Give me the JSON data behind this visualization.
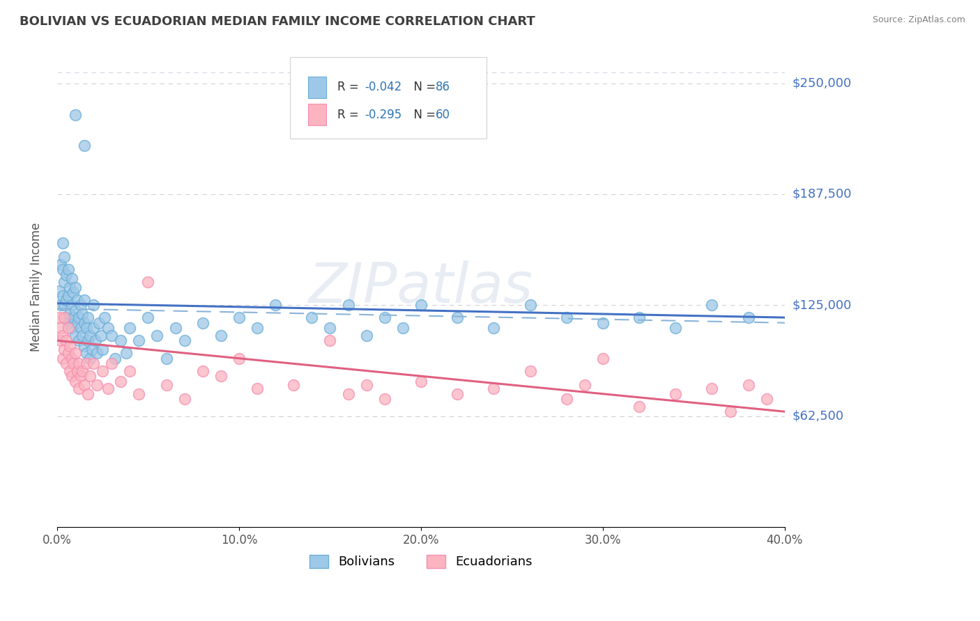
{
  "title": "BOLIVIAN VS ECUADORIAN MEDIAN FAMILY INCOME CORRELATION CHART",
  "source": "Source: ZipAtlas.com",
  "ylabel": "Median Family Income",
  "xlim": [
    0.0,
    0.4
  ],
  "ylim": [
    0,
    270000
  ],
  "yticks": [
    62500,
    125000,
    187500,
    250000
  ],
  "ytick_labels": [
    "$62,500",
    "$125,000",
    "$187,500",
    "$250,000"
  ],
  "xticks": [
    0.0,
    0.1,
    0.2,
    0.3,
    0.4
  ],
  "xtick_labels": [
    "0.0%",
    "10.0%",
    "20.0%",
    "30.0%",
    "40.0%"
  ],
  "bolivian_color": "#9ec8e8",
  "bolivian_edge_color": "#6baed6",
  "ecuadorian_color": "#fbb4c0",
  "ecuadorian_edge_color": "#f48fb1",
  "bolivian_line_color": "#4472c4",
  "ecuadorian_line_color": "#e06080",
  "bolivian_dash_color": "#8ab4d8",
  "R_bolivian": -0.042,
  "N_bolivian": 86,
  "R_ecuadorian": -0.295,
  "N_ecuadorian": 60,
  "legend_text_color": "#333333",
  "legend_value_color": "#2e75b6",
  "watermark": "ZIPatlas",
  "bg_color": "#ffffff",
  "grid_color": "#c0c0c0",
  "ytick_color": "#4472c4",
  "title_color": "#404040",
  "source_color": "#808080",
  "bolivian_scatter": {
    "x": [
      0.001,
      0.002,
      0.002,
      0.003,
      0.003,
      0.003,
      0.004,
      0.004,
      0.004,
      0.005,
      0.005,
      0.005,
      0.006,
      0.006,
      0.006,
      0.007,
      0.007,
      0.008,
      0.008,
      0.008,
      0.009,
      0.009,
      0.01,
      0.01,
      0.01,
      0.011,
      0.011,
      0.012,
      0.012,
      0.013,
      0.013,
      0.014,
      0.014,
      0.015,
      0.015,
      0.015,
      0.016,
      0.016,
      0.017,
      0.017,
      0.018,
      0.018,
      0.019,
      0.02,
      0.02,
      0.021,
      0.022,
      0.023,
      0.024,
      0.025,
      0.026,
      0.028,
      0.03,
      0.032,
      0.035,
      0.038,
      0.04,
      0.045,
      0.05,
      0.055,
      0.06,
      0.065,
      0.07,
      0.08,
      0.09,
      0.1,
      0.11,
      0.12,
      0.14,
      0.15,
      0.16,
      0.17,
      0.18,
      0.19,
      0.2,
      0.22,
      0.24,
      0.26,
      0.28,
      0.3,
      0.32,
      0.34,
      0.36,
      0.38,
      0.01,
      0.015
    ],
    "y": [
      133000,
      125000,
      148000,
      130000,
      145000,
      160000,
      125000,
      138000,
      152000,
      118000,
      128000,
      142000,
      115000,
      130000,
      145000,
      120000,
      135000,
      112000,
      125000,
      140000,
      118000,
      132000,
      108000,
      122000,
      135000,
      115000,
      128000,
      105000,
      118000,
      112000,
      125000,
      108000,
      120000,
      102000,
      115000,
      128000,
      98000,
      112000,
      105000,
      118000,
      95000,
      108000,
      100000,
      112000,
      125000,
      105000,
      98000,
      115000,
      108000,
      100000,
      118000,
      112000,
      108000,
      95000,
      105000,
      98000,
      112000,
      105000,
      118000,
      108000,
      95000,
      112000,
      105000,
      115000,
      108000,
      118000,
      112000,
      125000,
      118000,
      112000,
      125000,
      108000,
      118000,
      112000,
      125000,
      118000,
      112000,
      125000,
      118000,
      115000,
      118000,
      112000,
      125000,
      118000,
      232000,
      215000
    ]
  },
  "ecuadorian_scatter": {
    "x": [
      0.001,
      0.002,
      0.002,
      0.003,
      0.003,
      0.004,
      0.004,
      0.005,
      0.005,
      0.006,
      0.006,
      0.007,
      0.007,
      0.008,
      0.008,
      0.009,
      0.01,
      0.01,
      0.011,
      0.012,
      0.012,
      0.013,
      0.014,
      0.015,
      0.016,
      0.017,
      0.018,
      0.02,
      0.022,
      0.025,
      0.028,
      0.03,
      0.035,
      0.04,
      0.045,
      0.05,
      0.06,
      0.07,
      0.08,
      0.09,
      0.1,
      0.11,
      0.13,
      0.15,
      0.16,
      0.17,
      0.18,
      0.2,
      0.22,
      0.24,
      0.26,
      0.28,
      0.29,
      0.3,
      0.32,
      0.34,
      0.36,
      0.37,
      0.38,
      0.39
    ],
    "y": [
      118000,
      112000,
      105000,
      108000,
      95000,
      118000,
      100000,
      105000,
      92000,
      112000,
      98000,
      88000,
      102000,
      95000,
      85000,
      92000,
      98000,
      82000,
      88000,
      92000,
      78000,
      85000,
      88000,
      80000,
      92000,
      75000,
      85000,
      92000,
      80000,
      88000,
      78000,
      92000,
      82000,
      88000,
      75000,
      138000,
      80000,
      72000,
      88000,
      85000,
      95000,
      78000,
      80000,
      105000,
      75000,
      80000,
      72000,
      82000,
      75000,
      78000,
      88000,
      72000,
      80000,
      95000,
      68000,
      75000,
      78000,
      65000,
      80000,
      72000
    ]
  }
}
